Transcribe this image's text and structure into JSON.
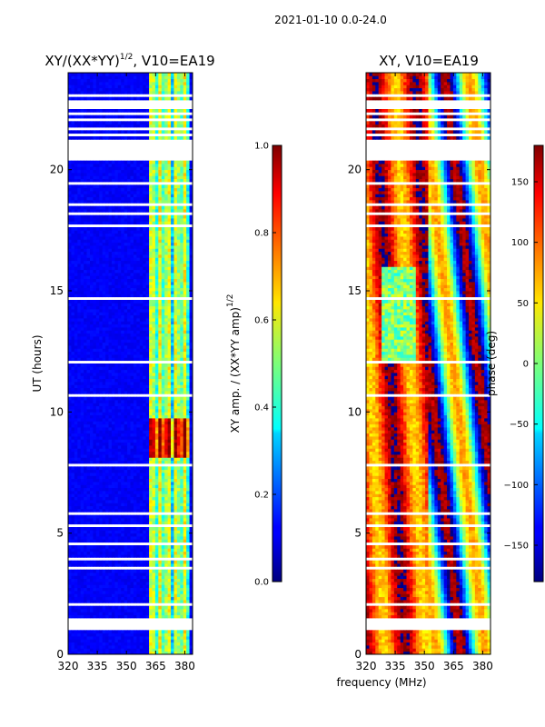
{
  "chart_data": [
    {
      "type": "heatmap",
      "suptitle": "2021-01-10 0.0-24.0",
      "title": "XY/(XX*YY)",
      "title_exponent": "1/2",
      "title_suffix": ", V10=EA19",
      "xlabel": "",
      "ylabel": "UT (hours)",
      "xlim": [
        320,
        384
      ],
      "ylim": [
        0,
        24
      ],
      "xticks": [
        320,
        335,
        350,
        365,
        380
      ],
      "yticks": [
        0,
        5,
        10,
        15,
        20
      ],
      "signal_band_mhz": [
        361,
        382
      ],
      "bright_band_hours": [
        8.1,
        9.7
      ],
      "colorbar": {
        "label": "XY amp. / (XX*YY amp)",
        "label_exponent": "1/2",
        "range": [
          0.0,
          1.0
        ],
        "ticks": [
          "0.0",
          "0.2",
          "0.4",
          "0.6",
          "0.8",
          "1.0"
        ],
        "colormap": "jet"
      }
    },
    {
      "type": "heatmap",
      "title": "XY, V10=EA19",
      "xlabel": "frequency (MHz)",
      "ylabel": "",
      "xlim": [
        320,
        384
      ],
      "ylim": [
        0,
        24
      ],
      "xticks": [
        320,
        335,
        350,
        365,
        380
      ],
      "yticks": [
        0,
        5,
        10,
        15,
        20
      ],
      "colorbar": {
        "label": "phase (deg)",
        "range": [
          -180,
          180
        ],
        "ticks": [
          "150",
          "100",
          "50",
          "0",
          "−50",
          "−100",
          "−150"
        ],
        "tick_values": [
          150,
          100,
          50,
          0,
          -50,
          -100,
          -150
        ],
        "colormap": "jet"
      }
    }
  ],
  "flagged_hours": [
    [
      0.45,
      0.55
    ],
    [
      0.95,
      1.45
    ],
    [
      2.05,
      2.12
    ],
    [
      2.6,
      2.67
    ],
    [
      2.85,
      2.9
    ],
    [
      3.0,
      3.05
    ],
    [
      3.55,
      3.6
    ],
    [
      3.9,
      3.95
    ],
    [
      4.25,
      4.3
    ],
    [
      4.55,
      4.6
    ],
    [
      5.1,
      5.15
    ],
    [
      5.3,
      5.35
    ],
    [
      5.8,
      5.85
    ],
    [
      6.35,
      6.4
    ],
    [
      6.7,
      6.75
    ],
    [
      7.45,
      7.5
    ],
    [
      7.75,
      7.9
    ],
    [
      10.65,
      10.75
    ],
    [
      10.95,
      11.05
    ],
    [
      12.05,
      12.1
    ],
    [
      12.85,
      12.9
    ],
    [
      13.35,
      13.4
    ],
    [
      13.95,
      14.0
    ],
    [
      14.35,
      14.4
    ],
    [
      14.65,
      14.7
    ],
    [
      15.45,
      15.5
    ],
    [
      15.95,
      16.0
    ],
    [
      16.25,
      16.3
    ],
    [
      16.7,
      16.75
    ],
    [
      17.1,
      17.15
    ],
    [
      17.65,
      17.7
    ],
    [
      18.15,
      18.2
    ],
    [
      18.55,
      18.6
    ],
    [
      19.0,
      19.05
    ],
    [
      19.4,
      19.45
    ],
    [
      19.75,
      19.8
    ],
    [
      20.35,
      21.25
    ],
    [
      21.35,
      21.45
    ],
    [
      21.6,
      21.7
    ],
    [
      21.85,
      21.92
    ],
    [
      22.0,
      22.1
    ],
    [
      22.25,
      22.35
    ],
    [
      22.45,
      22.85
    ],
    [
      23.0,
      23.08
    ],
    [
      23.45,
      23.52
    ]
  ]
}
